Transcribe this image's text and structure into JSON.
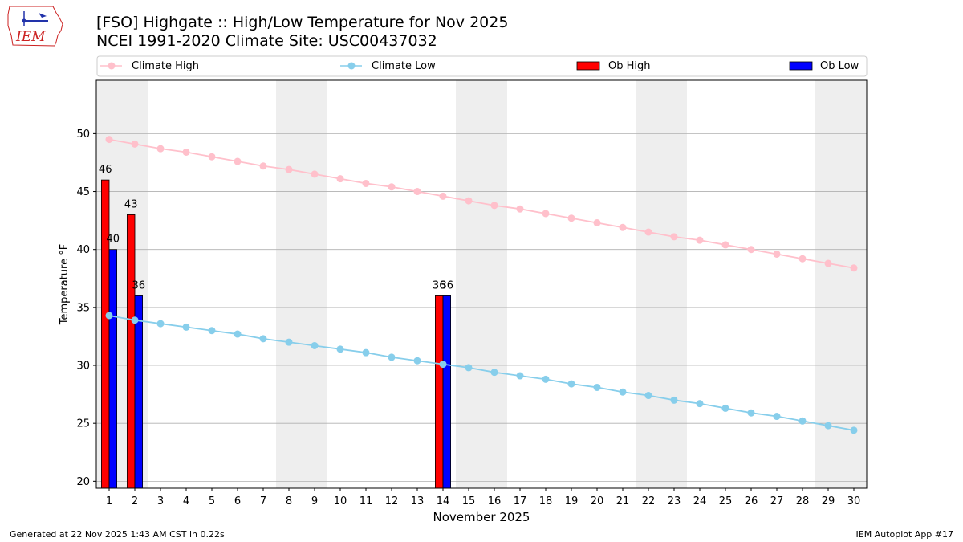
{
  "header": {
    "title_line1": "[FSO] Highgate :: High/Low Temperature for Nov 2025",
    "title_line2": "NCEI 1991-2020 Climate Site: USC00437032",
    "logo_text": "IEM"
  },
  "footer": {
    "generated": "Generated at 22 Nov 2025 1:43 AM CST in 0.22s",
    "app": "IEM Autoplot App #17"
  },
  "colors": {
    "climate_high": "#ffc0cb",
    "climate_low": "#87ceeb",
    "ob_high": "#ff0000",
    "ob_low": "#0000ff",
    "weekend_shade": "#eeeeee",
    "grid": "#b0b0b0",
    "logo": "#cc2222"
  },
  "chart_data": {
    "type": "bar",
    "title": "[FSO] Highgate :: High/Low Temperature for Nov 2025",
    "xlabel": "November 2025",
    "ylabel": "Temperature °F",
    "ylim": [
      19.4,
      54.6
    ],
    "yticks": [
      20,
      25,
      30,
      35,
      40,
      45,
      50
    ],
    "xlim": [
      0.5,
      30.5
    ],
    "grid": "horizontal",
    "legend_position": "top",
    "legend": [
      "Climate High",
      "Climate Low",
      "Ob High",
      "Ob Low"
    ],
    "days": [
      1,
      2,
      3,
      4,
      5,
      6,
      7,
      8,
      9,
      10,
      11,
      12,
      13,
      14,
      15,
      16,
      17,
      18,
      19,
      20,
      21,
      22,
      23,
      24,
      25,
      26,
      27,
      28,
      29,
      30
    ],
    "shaded_days": [
      [
        1,
        2
      ],
      [
        8,
        9
      ],
      [
        15,
        16
      ],
      [
        22,
        23
      ],
      [
        29,
        30
      ]
    ],
    "climate_high": [
      49.5,
      49.1,
      48.7,
      48.4,
      48.0,
      47.6,
      47.2,
      46.9,
      46.5,
      46.1,
      45.7,
      45.4,
      45.0,
      44.6,
      44.2,
      43.8,
      43.5,
      43.1,
      42.7,
      42.3,
      41.9,
      41.5,
      41.1,
      40.8,
      40.4,
      40.0,
      39.6,
      39.2,
      38.8,
      38.4
    ],
    "climate_low": [
      34.3,
      33.9,
      33.6,
      33.3,
      33.0,
      32.7,
      32.3,
      32.0,
      31.7,
      31.4,
      31.1,
      30.7,
      30.4,
      30.1,
      29.8,
      29.4,
      29.1,
      28.8,
      28.4,
      28.1,
      27.7,
      27.4,
      27.0,
      26.7,
      26.3,
      25.9,
      25.6,
      25.2,
      24.8,
      24.4
    ],
    "ob_high": [
      {
        "day": 1,
        "value": 46,
        "label": "46"
      },
      {
        "day": 2,
        "value": 43,
        "label": "43"
      },
      {
        "day": 14,
        "value": 36,
        "label": "36"
      }
    ],
    "ob_low": [
      {
        "day": 1,
        "value": 40,
        "label": "40"
      },
      {
        "day": 2,
        "value": 36,
        "label": "36"
      },
      {
        "day": 14,
        "value": 36,
        "label": "36"
      }
    ]
  }
}
